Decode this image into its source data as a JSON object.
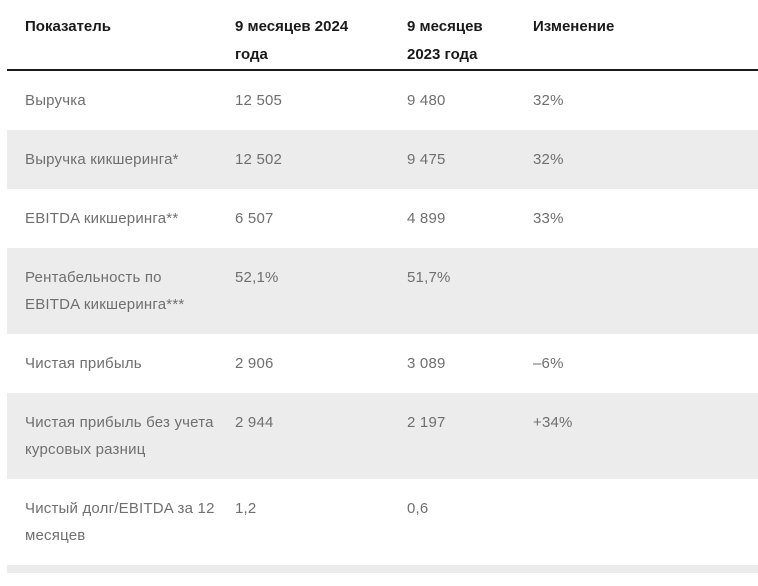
{
  "table": {
    "title": "Financial results table",
    "colors": {
      "header_text": "#1A1A1A",
      "rule": "#1A1A1A",
      "body_text": "#6F6F6F",
      "shaded_row_bg": "#ECECEC"
    },
    "columns": [
      {
        "label": "Показатель"
      },
      {
        "label": "9 месяцев 2024\nгода"
      },
      {
        "label": "9 месяцев\n2023 года"
      },
      {
        "label": "Изменение"
      }
    ],
    "rows": [
      {
        "indicator": "Выручка",
        "y2024": "12 505",
        "y2023": "9 480",
        "change": "32%",
        "shaded": false
      },
      {
        "indicator": "Выручка кикшеринга*",
        "y2024": "12 502",
        "y2023": "9 475",
        "change": "32%",
        "shaded": true
      },
      {
        "indicator": "EBITDA кикшеринга**",
        "y2024": "6 507",
        "y2023": "4 899",
        "change": "33%",
        "shaded": false
      },
      {
        "indicator": "Рентабельность по\nEBITDA кикшеринга***",
        "y2024": "52,1%",
        "y2023": "51,7%",
        "change": "",
        "shaded": true
      },
      {
        "indicator": "Чистая прибыль",
        "y2024": "2 906",
        "y2023": "3 089",
        "change": "–6%",
        "shaded": false
      },
      {
        "indicator": "Чистая прибыль без учета\nкурсовых разниц",
        "y2024": "2 944",
        "y2023": "2 197",
        "change": "+34%",
        "shaded": true
      },
      {
        "indicator": "Чистый долг/EBITDA за 12\nмесяцев",
        "y2024": "1,2",
        "y2023": "0,6",
        "change": "",
        "shaded": false
      }
    ]
  }
}
